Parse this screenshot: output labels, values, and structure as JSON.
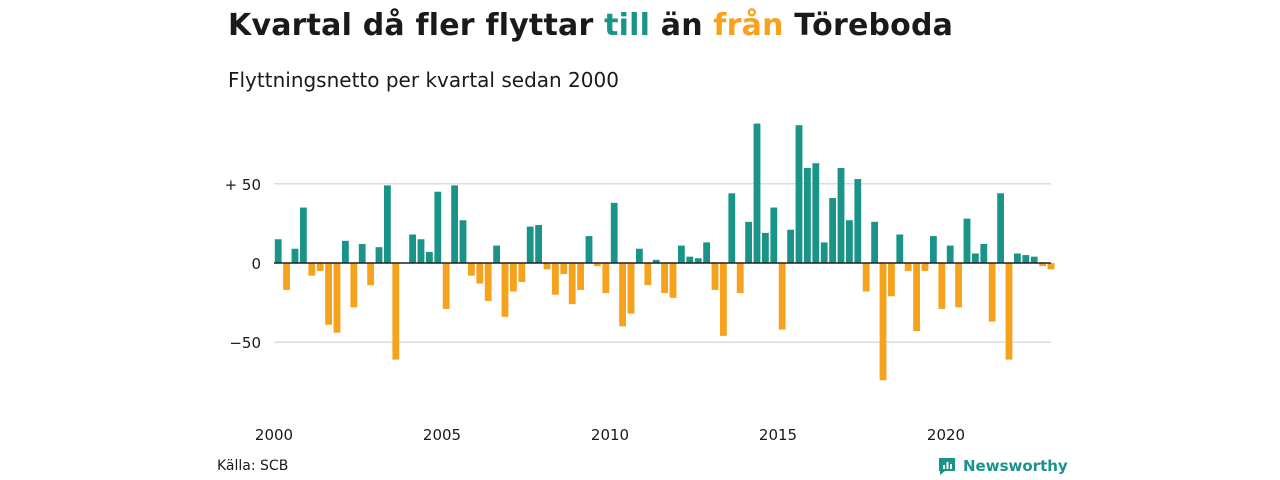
{
  "header": {
    "title_parts": [
      "Kvartal då fler flyttar ",
      "till",
      " än ",
      "från",
      " Töreboda"
    ],
    "subtitle": "Flyttningsnetto per kvartal sedan 2000"
  },
  "footer": {
    "source": "Källa: SCB",
    "brand": "Newsworthy"
  },
  "colors": {
    "positive": "#1a9488",
    "negative": "#f6a21c",
    "grid": "#dddddd",
    "text": "#1a1a1a"
  },
  "chart_data": {
    "type": "bar",
    "title": "Kvartal då fler flyttar till än från Töreboda",
    "subtitle": "Flyttningsnetto per kvartal sedan 2000",
    "xlabel": "",
    "ylabel": "",
    "ylim": [
      -85,
      95
    ],
    "xlim": [
      2000,
      2023.5
    ],
    "grid": true,
    "y_ticks": [
      {
        "value": 50,
        "label": "+ 50"
      },
      {
        "value": 0,
        "label": "0"
      },
      {
        "value": -50,
        "label": "−50"
      }
    ],
    "x_ticks": [
      {
        "value": 2000,
        "label": "2000"
      },
      {
        "value": 2005,
        "label": "2005"
      },
      {
        "value": 2010,
        "label": "2010"
      },
      {
        "value": 2015,
        "label": "2015"
      },
      {
        "value": 2020,
        "label": "2020"
      }
    ],
    "start_year": 2000,
    "values": [
      15,
      -17,
      9,
      35,
      -8,
      -5,
      -39,
      -44,
      14,
      -28,
      12,
      -14,
      10,
      49,
      -61,
      0,
      18,
      15,
      7,
      45,
      -29,
      49,
      27,
      -8,
      -13,
      -24,
      11,
      -34,
      -18,
      -12,
      23,
      24,
      -4,
      -20,
      -7,
      -26,
      -17,
      17,
      -2,
      -19,
      38,
      -40,
      -32,
      9,
      -14,
      2,
      -19,
      -22,
      11,
      4,
      3,
      13,
      -17,
      -46,
      44,
      -19,
      26,
      88,
      19,
      35,
      -42,
      21,
      87,
      60,
      63,
      13,
      41,
      60,
      27,
      53,
      -18,
      26,
      -74,
      -21,
      18,
      -5,
      -43,
      -5,
      17,
      -29,
      11,
      -28,
      28,
      6,
      12,
      -37,
      44,
      -61,
      6,
      5,
      4,
      -2,
      -4
    ]
  }
}
